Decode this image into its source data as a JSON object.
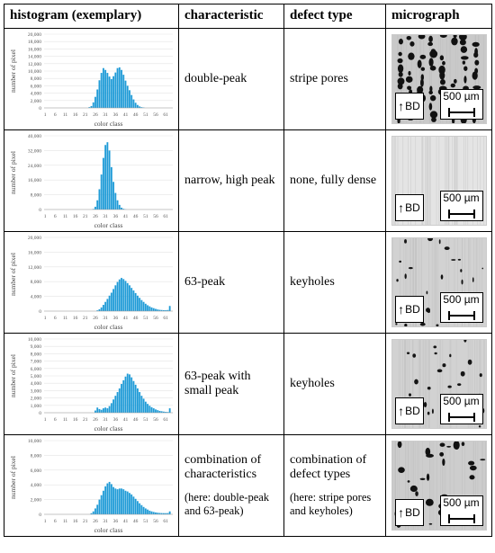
{
  "headers": {
    "histogram": "histogram (exemplary)",
    "characteristic": "characteristic",
    "defect": "defect type",
    "micrograph": "micrograph"
  },
  "rows": [
    {
      "characteristic": "double-peak",
      "characteristic_sub": "",
      "defect": "stripe pores",
      "defect_sub": "",
      "micro_style": "stripes"
    },
    {
      "characteristic": "narrow, high peak",
      "characteristic_sub": "",
      "defect": "none, fully dense",
      "defect_sub": "",
      "micro_style": "dense"
    },
    {
      "characteristic": "63-peak",
      "characteristic_sub": "",
      "defect": "keyholes",
      "defect_sub": "",
      "micro_style": "keyholes"
    },
    {
      "characteristic": "63-peak with small peak",
      "characteristic_sub": "",
      "defect": "keyholes",
      "defect_sub": "",
      "micro_style": "keyholes"
    },
    {
      "characteristic": "combination of characteristics",
      "characteristic_sub": "(here: double-peak and 63-peak)",
      "defect": "combination of defect types",
      "defect_sub": "(here: stripe pores and keyholes)",
      "micro_style": "combo"
    }
  ],
  "micro_labels": {
    "bd": "BD",
    "scale": "500 µm"
  },
  "chart_data": [
    {
      "type": "bar",
      "xlabel": "color class",
      "ylabel": "number of pixel",
      "x_ticks": [
        "1",
        "6",
        "11",
        "16",
        "21",
        "26",
        "31",
        "36",
        "41",
        "46",
        "51",
        "56",
        "61"
      ],
      "y_ticks": [
        "0",
        "2,000",
        "4,000",
        "6,000",
        "8,000",
        "10,000",
        "12,000",
        "14,000",
        "16,000",
        "18,000",
        "20,000"
      ],
      "ylim": [
        0,
        20000
      ],
      "x": [
        23,
        24,
        25,
        26,
        27,
        28,
        29,
        30,
        31,
        32,
        33,
        34,
        35,
        36,
        37,
        38,
        39,
        40,
        41,
        42,
        43,
        44,
        45,
        46,
        47,
        48,
        49,
        50
      ],
      "values": [
        200,
        500,
        1500,
        3000,
        5000,
        7500,
        9500,
        10800,
        10300,
        9500,
        8500,
        7800,
        8600,
        9600,
        10800,
        11000,
        10300,
        9000,
        7400,
        6000,
        4800,
        3500,
        2300,
        1400,
        800,
        400,
        200,
        100
      ],
      "color": "#1f9bd7"
    },
    {
      "type": "bar",
      "xlabel": "color class",
      "ylabel": "number of pixel",
      "x_ticks": [
        "1",
        "6",
        "11",
        "16",
        "21",
        "26",
        "31",
        "36",
        "41",
        "46",
        "51",
        "56",
        "61"
      ],
      "y_ticks": [
        "0",
        "8,000",
        "16,000",
        "24,000",
        "32,000",
        "40,000"
      ],
      "ylim": [
        0,
        40000
      ],
      "x": [
        25,
        26,
        27,
        28,
        29,
        30,
        31,
        32,
        33,
        34,
        35,
        36,
        37,
        38,
        39,
        40,
        41
      ],
      "values": [
        300,
        1500,
        5000,
        11000,
        19000,
        28000,
        35000,
        36500,
        32000,
        23000,
        15000,
        9000,
        5000,
        2500,
        1000,
        400,
        100
      ],
      "color": "#1f9bd7"
    },
    {
      "type": "bar",
      "xlabel": "color class",
      "ylabel": "number of pixel",
      "x_ticks": [
        "1",
        "6",
        "11",
        "16",
        "21",
        "26",
        "31",
        "36",
        "41",
        "46",
        "51",
        "56",
        "61"
      ],
      "y_ticks": [
        "0",
        "4,000",
        "8,000",
        "12,000",
        "16,000",
        "20,000"
      ],
      "ylim": [
        0,
        20000
      ],
      "x": [
        27,
        28,
        29,
        30,
        31,
        32,
        33,
        34,
        35,
        36,
        37,
        38,
        39,
        40,
        41,
        42,
        43,
        44,
        45,
        46,
        47,
        48,
        49,
        50,
        51,
        52,
        53,
        54,
        55,
        56,
        57,
        58,
        59,
        60,
        61,
        62,
        63
      ],
      "values": [
        200,
        500,
        1000,
        1700,
        2500,
        3300,
        4200,
        5000,
        6000,
        7000,
        7900,
        8600,
        9000,
        8700,
        8200,
        7600,
        7000,
        6300,
        5600,
        4900,
        4200,
        3600,
        3000,
        2500,
        2000,
        1600,
        1300,
        1000,
        800,
        600,
        450,
        350,
        300,
        250,
        250,
        300,
        1400
      ],
      "color": "#1f9bd7"
    },
    {
      "type": "bar",
      "xlabel": "color class",
      "ylabel": "number of pixel",
      "x_ticks": [
        "1",
        "6",
        "11",
        "16",
        "21",
        "26",
        "31",
        "36",
        "41",
        "46",
        "51",
        "56",
        "61"
      ],
      "y_ticks": [
        "0",
        "1,000",
        "2,000",
        "3,000",
        "4,000",
        "5,000",
        "6,000",
        "7,000",
        "8,000",
        "9,000",
        "10,000"
      ],
      "ylim": [
        0,
        10000
      ],
      "x": [
        26,
        27,
        28,
        29,
        30,
        31,
        32,
        33,
        34,
        35,
        36,
        37,
        38,
        39,
        40,
        41,
        42,
        43,
        44,
        45,
        46,
        47,
        48,
        49,
        50,
        51,
        52,
        53,
        54,
        55,
        56,
        57,
        58,
        59,
        60,
        61,
        62,
        63
      ],
      "values": [
        300,
        700,
        500,
        400,
        600,
        700,
        600,
        900,
        1300,
        1800,
        2300,
        2800,
        3300,
        3900,
        4400,
        4900,
        5300,
        5200,
        4800,
        4300,
        3800,
        3300,
        2800,
        2300,
        1900,
        1500,
        1200,
        950,
        750,
        600,
        450,
        350,
        250,
        200,
        150,
        120,
        100,
        600
      ],
      "color": "#1f9bd7"
    },
    {
      "type": "bar",
      "xlabel": "color class",
      "ylabel": "number of pixel",
      "x_ticks": [
        "1",
        "6",
        "11",
        "16",
        "21",
        "26",
        "31",
        "36",
        "41",
        "46",
        "51",
        "56",
        "61"
      ],
      "y_ticks": [
        "0",
        "2,000",
        "4,000",
        "6,000",
        "8,000",
        "10,000"
      ],
      "ylim": [
        0,
        10000
      ],
      "x": [
        24,
        25,
        26,
        27,
        28,
        29,
        30,
        31,
        32,
        33,
        34,
        35,
        36,
        37,
        38,
        39,
        40,
        41,
        42,
        43,
        44,
        45,
        46,
        47,
        48,
        49,
        50,
        51,
        52,
        53,
        54,
        55,
        56,
        57,
        58,
        59,
        60,
        61,
        62,
        63
      ],
      "values": [
        150,
        400,
        800,
        1300,
        2000,
        2600,
        3200,
        3800,
        4200,
        4400,
        4100,
        3700,
        3500,
        3400,
        3500,
        3500,
        3400,
        3200,
        3100,
        2900,
        2700,
        2400,
        2100,
        1800,
        1500,
        1250,
        1000,
        800,
        650,
        500,
        400,
        320,
        260,
        220,
        190,
        170,
        160,
        160,
        170,
        400
      ],
      "color": "#1f9bd7"
    }
  ]
}
